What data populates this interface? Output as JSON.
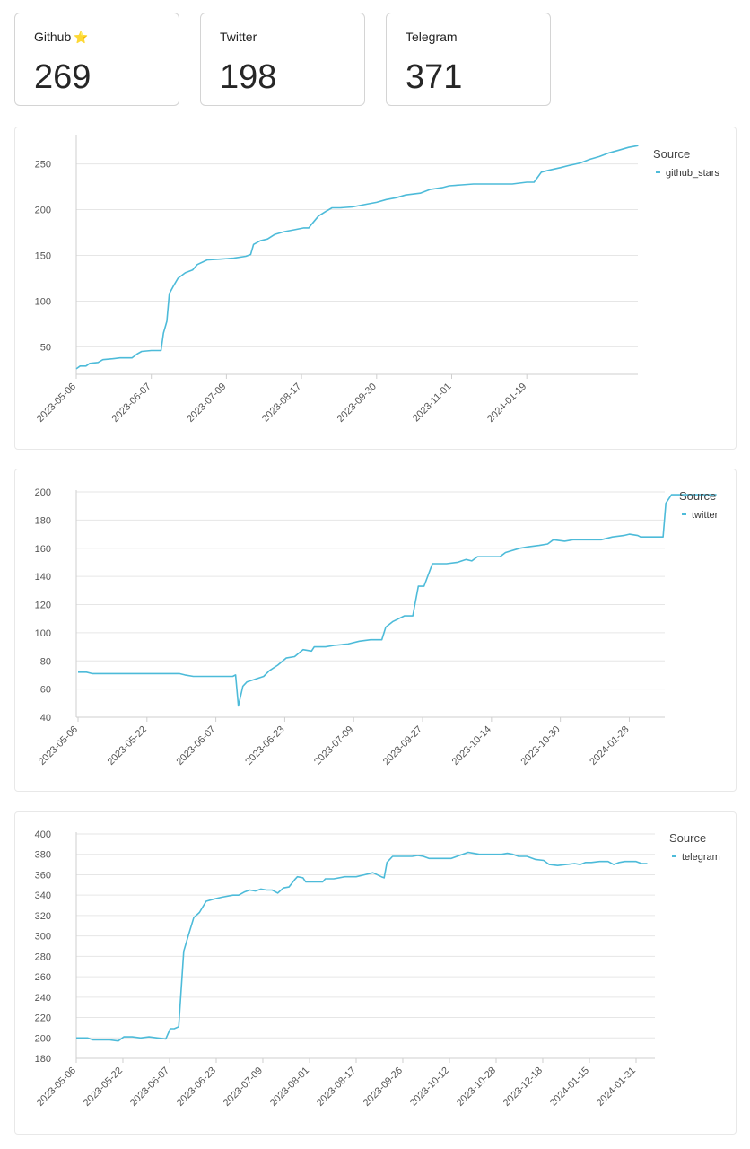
{
  "stats": [
    {
      "label": "Github",
      "value": "269"
    },
    {
      "label": "Twitter",
      "value": "198"
    },
    {
      "label": "Telegram",
      "value": "371"
    }
  ],
  "colors": {
    "line": "#4dbbd9",
    "grid": "#e6e6e6",
    "axis": "#cfcfcf",
    "tick": "#555555"
  },
  "chart_data": [
    {
      "type": "line",
      "legend_title": "Source",
      "legend_position": "top-right",
      "grid": true,
      "series": [
        {
          "name": "github_stars",
          "color": "#4dbbd9"
        }
      ],
      "x_tick_labels": [
        "2023-05-06",
        "2023-06-07",
        "2023-07-09",
        "2023-08-17",
        "2023-09-30",
        "2023-11-01",
        "2024-01-19"
      ],
      "ylim": [
        20,
        280
      ],
      "y_ticks": [
        50,
        100,
        150,
        200,
        250
      ],
      "points": [
        [
          0,
          26
        ],
        [
          0.008,
          29
        ],
        [
          0.02,
          29
        ],
        [
          0.028,
          32
        ],
        [
          0.045,
          33
        ],
        [
          0.055,
          36
        ],
        [
          0.075,
          37
        ],
        [
          0.09,
          38
        ],
        [
          0.115,
          38
        ],
        [
          0.125,
          42
        ],
        [
          0.135,
          45
        ],
        [
          0.155,
          46
        ],
        [
          0.175,
          46
        ],
        [
          0.18,
          65
        ],
        [
          0.187,
          78
        ],
        [
          0.192,
          108
        ],
        [
          0.2,
          116
        ],
        [
          0.21,
          125
        ],
        [
          0.225,
          131
        ],
        [
          0.24,
          134
        ],
        [
          0.25,
          140
        ],
        [
          0.27,
          145
        ],
        [
          0.3,
          146
        ],
        [
          0.325,
          147
        ],
        [
          0.35,
          149
        ],
        [
          0.36,
          151
        ],
        [
          0.366,
          162
        ],
        [
          0.38,
          166
        ],
        [
          0.395,
          168
        ],
        [
          0.41,
          173
        ],
        [
          0.43,
          176
        ],
        [
          0.45,
          178
        ],
        [
          0.47,
          180
        ],
        [
          0.48,
          180
        ],
        [
          0.486,
          184
        ],
        [
          0.5,
          193
        ],
        [
          0.515,
          198
        ],
        [
          0.528,
          202
        ],
        [
          0.545,
          202
        ],
        [
          0.57,
          203
        ],
        [
          0.6,
          206
        ],
        [
          0.62,
          208
        ],
        [
          0.64,
          211
        ],
        [
          0.66,
          213
        ],
        [
          0.68,
          216
        ],
        [
          0.71,
          218
        ],
        [
          0.73,
          222
        ],
        [
          0.755,
          224
        ],
        [
          0.77,
          226
        ],
        [
          0.795,
          227
        ],
        [
          0.82,
          228
        ],
        [
          0.86,
          228
        ],
        [
          0.9,
          228
        ],
        [
          0.93,
          230
        ],
        [
          0.945,
          230
        ],
        [
          0.96,
          241
        ],
        [
          0.975,
          243
        ],
        [
          1.0,
          246
        ],
        [
          1.015,
          248
        ],
        [
          1.04,
          251
        ],
        [
          1.06,
          255
        ],
        [
          1.08,
          258
        ],
        [
          1.1,
          262
        ],
        [
          1.12,
          265
        ],
        [
          1.14,
          268
        ],
        [
          1.16,
          270
        ]
      ],
      "x_tick_fracs": [
        0,
        0.155,
        0.31,
        0.465,
        0.62,
        0.775,
        0.93
      ]
    },
    {
      "type": "line",
      "legend_title": "Source",
      "legend_position": "top-right",
      "grid": true,
      "series": [
        {
          "name": "twitter",
          "color": "#4dbbd9"
        }
      ],
      "x_tick_labels": [
        "2023-05-06",
        "2023-05-22",
        "2023-06-07",
        "2023-06-23",
        "2023-07-09",
        "2023-09-27",
        "2023-10-14",
        "2023-10-30",
        "2024-01-28"
      ],
      "ylim": [
        40,
        200
      ],
      "y_ticks": [
        40,
        60,
        80,
        100,
        120,
        140,
        160,
        180,
        200
      ],
      "points": [
        [
          0,
          72
        ],
        [
          0.015,
          72
        ],
        [
          0.025,
          71
        ],
        [
          0.1,
          71
        ],
        [
          0.18,
          71
        ],
        [
          0.19,
          70
        ],
        [
          0.205,
          69
        ],
        [
          0.26,
          69
        ],
        [
          0.275,
          69
        ],
        [
          0.28,
          70
        ],
        [
          0.285,
          48
        ],
        [
          0.293,
          62
        ],
        [
          0.3,
          65
        ],
        [
          0.315,
          67
        ],
        [
          0.33,
          69
        ],
        [
          0.34,
          73
        ],
        [
          0.355,
          77
        ],
        [
          0.37,
          82
        ],
        [
          0.385,
          83
        ],
        [
          0.4,
          88
        ],
        [
          0.415,
          87
        ],
        [
          0.42,
          90
        ],
        [
          0.44,
          90
        ],
        [
          0.455,
          91
        ],
        [
          0.48,
          92
        ],
        [
          0.5,
          94
        ],
        [
          0.52,
          95
        ],
        [
          0.54,
          95
        ],
        [
          0.547,
          104
        ],
        [
          0.56,
          108
        ],
        [
          0.58,
          112
        ],
        [
          0.595,
          112
        ],
        [
          0.605,
          133
        ],
        [
          0.615,
          133
        ],
        [
          0.63,
          149
        ],
        [
          0.655,
          149
        ],
        [
          0.675,
          150
        ],
        [
          0.69,
          152
        ],
        [
          0.7,
          151
        ],
        [
          0.71,
          154
        ],
        [
          0.735,
          154
        ],
        [
          0.75,
          154
        ],
        [
          0.76,
          157
        ],
        [
          0.785,
          160
        ],
        [
          0.8,
          161
        ],
        [
          0.82,
          162
        ],
        [
          0.835,
          163
        ],
        [
          0.845,
          166
        ],
        [
          0.865,
          165
        ],
        [
          0.88,
          166
        ],
        [
          0.9,
          166
        ],
        [
          0.93,
          166
        ],
        [
          0.95,
          168
        ],
        [
          0.97,
          169
        ],
        [
          0.98,
          170
        ],
        [
          0.995,
          169
        ],
        [
          1.0,
          168
        ],
        [
          1.02,
          168
        ],
        [
          1.04,
          168
        ],
        [
          1.045,
          192
        ],
        [
          1.055,
          198
        ],
        [
          1.09,
          198
        ],
        [
          1.12,
          198
        ],
        [
          1.135,
          198
        ]
      ],
      "x_tick_fracs": [
        0,
        0.1225,
        0.245,
        0.3675,
        0.49,
        0.6125,
        0.735,
        0.8575,
        0.98
      ]
    },
    {
      "type": "line",
      "legend_title": "Source",
      "legend_position": "top-right",
      "grid": true,
      "series": [
        {
          "name": "telegram",
          "color": "#4dbbd9"
        }
      ],
      "x_tick_labels": [
        "2023-05-06",
        "2023-05-22",
        "2023-06-07",
        "2023-06-23",
        "2023-07-09",
        "2023-08-01",
        "2023-08-17",
        "2023-09-26",
        "2023-10-12",
        "2023-10-28",
        "2023-12-18",
        "2024-01-15",
        "2024-01-31"
      ],
      "ylim": [
        180,
        400
      ],
      "y_ticks": [
        180,
        200,
        220,
        240,
        260,
        280,
        300,
        320,
        340,
        360,
        380,
        400
      ],
      "points": [
        [
          0,
          200
        ],
        [
          0.02,
          200
        ],
        [
          0.03,
          198
        ],
        [
          0.06,
          198
        ],
        [
          0.075,
          197
        ],
        [
          0.085,
          201
        ],
        [
          0.1,
          201
        ],
        [
          0.115,
          200
        ],
        [
          0.13,
          201
        ],
        [
          0.145,
          200
        ],
        [
          0.16,
          199
        ],
        [
          0.168,
          209
        ],
        [
          0.175,
          209
        ],
        [
          0.183,
          211
        ],
        [
          0.192,
          285
        ],
        [
          0.2,
          300
        ],
        [
          0.21,
          318
        ],
        [
          0.22,
          323
        ],
        [
          0.232,
          334
        ],
        [
          0.245,
          336
        ],
        [
          0.26,
          338
        ],
        [
          0.28,
          340
        ],
        [
          0.29,
          340
        ],
        [
          0.3,
          343
        ],
        [
          0.31,
          345
        ],
        [
          0.32,
          344
        ],
        [
          0.33,
          346
        ],
        [
          0.34,
          345
        ],
        [
          0.35,
          345
        ],
        [
          0.36,
          342
        ],
        [
          0.37,
          347
        ],
        [
          0.38,
          348
        ],
        [
          0.39,
          355
        ],
        [
          0.395,
          358
        ],
        [
          0.405,
          357
        ],
        [
          0.41,
          353
        ],
        [
          0.425,
          353
        ],
        [
          0.44,
          353
        ],
        [
          0.445,
          356
        ],
        [
          0.46,
          356
        ],
        [
          0.48,
          358
        ],
        [
          0.5,
          358
        ],
        [
          0.515,
          360
        ],
        [
          0.53,
          362
        ],
        [
          0.545,
          358
        ],
        [
          0.55,
          357
        ],
        [
          0.555,
          372
        ],
        [
          0.565,
          378
        ],
        [
          0.575,
          378
        ],
        [
          0.6,
          378
        ],
        [
          0.61,
          379
        ],
        [
          0.62,
          378
        ],
        [
          0.63,
          376
        ],
        [
          0.64,
          376
        ],
        [
          0.65,
          376
        ],
        [
          0.67,
          376
        ],
        [
          0.68,
          378
        ],
        [
          0.69,
          380
        ],
        [
          0.7,
          382
        ],
        [
          0.71,
          381
        ],
        [
          0.72,
          380
        ],
        [
          0.74,
          380
        ],
        [
          0.76,
          380
        ],
        [
          0.77,
          381
        ],
        [
          0.78,
          380
        ],
        [
          0.79,
          378
        ],
        [
          0.805,
          378
        ],
        [
          0.82,
          375
        ],
        [
          0.835,
          374
        ],
        [
          0.845,
          370
        ],
        [
          0.86,
          369
        ],
        [
          0.875,
          370
        ],
        [
          0.89,
          371
        ],
        [
          0.9,
          370
        ],
        [
          0.91,
          372
        ],
        [
          0.92,
          372
        ],
        [
          0.935,
          373
        ],
        [
          0.95,
          373
        ],
        [
          0.96,
          370
        ],
        [
          0.97,
          372
        ],
        [
          0.98,
          373
        ],
        [
          1.0,
          373
        ],
        [
          1.01,
          371
        ],
        [
          1.02,
          371
        ]
      ],
      "x_tick_fracs": [
        0,
        0.0833,
        0.1667,
        0.25,
        0.3333,
        0.4167,
        0.5,
        0.5833,
        0.6667,
        0.75,
        0.8333,
        0.9167,
        1.0
      ]
    }
  ]
}
